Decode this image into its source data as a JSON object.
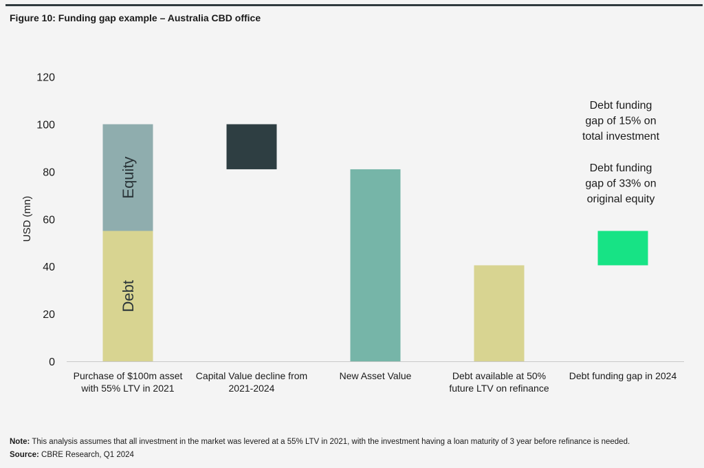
{
  "figure_title": "Figure 10: Funding gap example – Australia CBD office",
  "note": {
    "label": "Note:",
    "text": "This analysis assumes that all investment in the market was levered at a 55% LTV in 2021, with the investment having a loan maturity of 3 year before refinance is needed."
  },
  "source": {
    "label": "Source:",
    "text": "CBRE Research, Q1 2024"
  },
  "colors": {
    "equity": "#8fadae",
    "debt": "#d8d491",
    "decline": "#2e3e42",
    "new_value": "#76b5a8",
    "refinance_debt": "#d8d491",
    "gap": "#17e385",
    "axis": "#c8c8c8"
  },
  "chart_data": {
    "type": "bar",
    "title": "Figure 10: Funding gap example – Australia CBD office",
    "ylabel": "USD (mn)",
    "xlabel": "",
    "ylim": [
      0,
      120
    ],
    "yticks": [
      0,
      20,
      40,
      60,
      80,
      100,
      120
    ],
    "grid": false,
    "categories": [
      [
        "Purchase of $100m asset",
        "with 55% LTV in 2021"
      ],
      [
        "Capital Value decline from",
        "2021-2024"
      ],
      [
        "New Asset Value"
      ],
      [
        "Debt available at 50%",
        "future LTV on refinance"
      ],
      [
        "Debt funding gap in 2024"
      ]
    ],
    "bars": [
      [
        {
          "name": "Debt",
          "bottom": 0,
          "top": 55,
          "color": "#d8d491",
          "inner_label": "Debt"
        },
        {
          "name": "Equity",
          "bottom": 55,
          "top": 100,
          "color": "#8fadae",
          "inner_label": "Equity"
        }
      ],
      [
        {
          "name": "Capital Value decline",
          "bottom": 81,
          "top": 100,
          "color": "#2e3e42"
        }
      ],
      [
        {
          "name": "New Asset Value",
          "bottom": 0,
          "top": 81,
          "color": "#76b5a8"
        }
      ],
      [
        {
          "name": "Debt available",
          "bottom": 0,
          "top": 40.5,
          "color": "#d8d491"
        }
      ],
      [
        {
          "name": "Debt funding gap",
          "bottom": 40.5,
          "top": 55,
          "color": "#17e385"
        }
      ]
    ],
    "annotations": [
      [
        "Debt funding",
        "gap of 15% on",
        "total investment"
      ],
      [
        "Debt funding",
        "gap of 33% on",
        "original equity"
      ]
    ]
  }
}
